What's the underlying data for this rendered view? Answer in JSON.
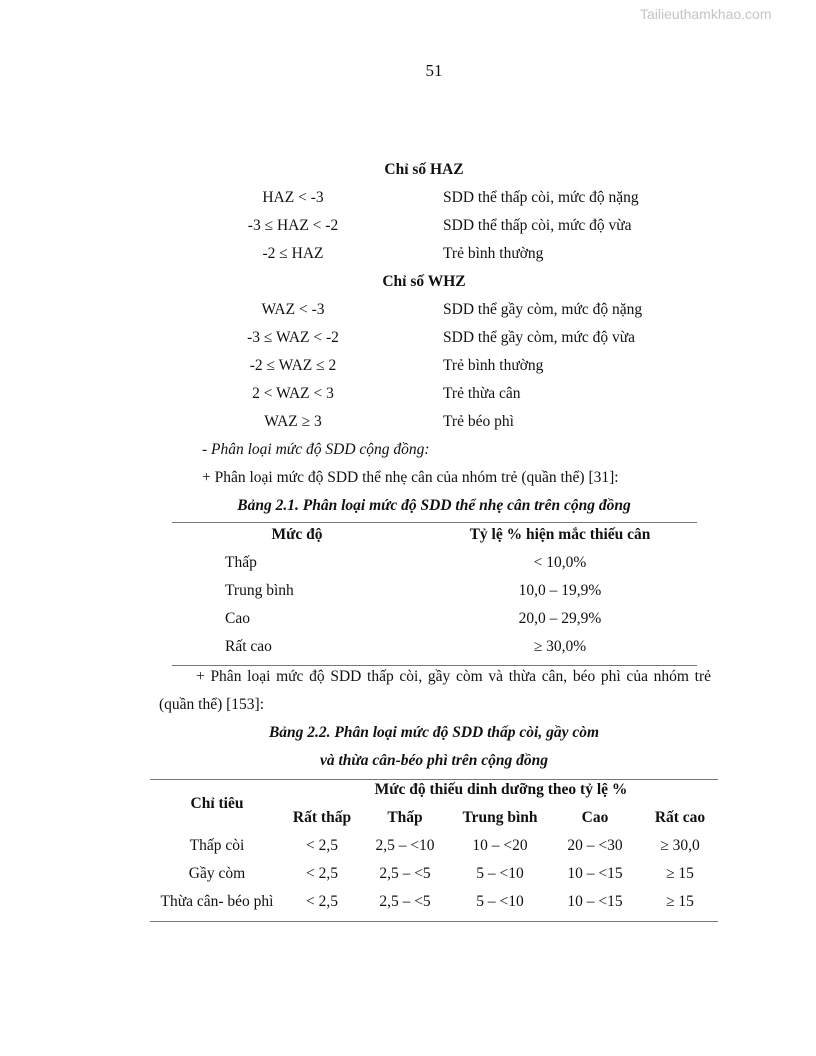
{
  "watermark": "Tailieuthamkhao.com",
  "page_number": "51",
  "haz": {
    "heading": "Chỉ số HAZ",
    "rows": [
      {
        "range": "HAZ < -3",
        "meaning": "SDD thể thấp còi, mức độ nặng"
      },
      {
        "range": "-3 ≤ HAZ < -2",
        "meaning": "SDD thể thấp còi, mức độ vừa"
      },
      {
        "range": "-2 ≤ HAZ",
        "meaning": "Trẻ bình thường"
      }
    ]
  },
  "whz": {
    "heading": "Chỉ số WHZ",
    "rows": [
      {
        "range": "WAZ < -3",
        "meaning": "SDD thể gầy còm, mức độ nặng"
      },
      {
        "range": "-3 ≤ WAZ < -2",
        "meaning": "SDD thể gầy còm, mức độ vừa"
      },
      {
        "range": "-2 ≤ WAZ ≤ 2",
        "meaning": "Trẻ bình thường"
      },
      {
        "range": "2 < WAZ < 3",
        "meaning": "Trẻ thừa cân"
      },
      {
        "range": "WAZ ≥ 3",
        "meaning": "Trẻ béo phì"
      }
    ]
  },
  "section_label": "- Phân loại mức độ SDD cộng đồng:",
  "para1": "+ Phân loại mức độ SDD thể nhẹ cân của nhóm trẻ (quần thể) [31]:",
  "table1": {
    "caption": "Bảng 2.1. Phân loại mức độ SDD thể nhẹ cân trên cộng đồng",
    "headers": [
      "Mức độ",
      "Tỷ lệ % hiện mắc thiếu cân"
    ],
    "rows": [
      [
        "Thấp",
        "< 10,0%"
      ],
      [
        "Trung bình",
        "10,0 – 19,9%"
      ],
      [
        "Cao",
        "20,0 – 29,9%"
      ],
      [
        "Rất cao",
        "≥ 30,0%"
      ]
    ]
  },
  "para2_line1": "+ Phân loại mức độ SDD thấp còi, gầy còm và thừa cân, béo phì của nhóm trẻ",
  "para2_line2": "(quần thể) [153]:",
  "table2": {
    "caption_line1": "Bảng 2.2. Phân loại mức độ SDD thấp còi, gầy còm",
    "caption_line2": "và thừa cân-béo phì trên cộng đồng",
    "row_header": "Chỉ tiêu",
    "group_header": "Mức độ thiếu dinh dưỡng theo tỷ lệ %",
    "headers": [
      "Rất thấp",
      "Thấp",
      "Trung bình",
      "Cao",
      "Rất cao"
    ],
    "rows": [
      [
        "Thấp còi",
        "< 2,5",
        "2,5 – <10",
        "10 – <20",
        "20 – <30",
        "≥ 30,0"
      ],
      [
        "Gầy còm",
        "< 2,5",
        "2,5 – <5",
        "5 – <10",
        "10 – <15",
        "≥ 15"
      ],
      [
        "Thừa cân- béo phì",
        "< 2,5",
        "2,5 – <5",
        "5 – <10",
        "10 – <15",
        "≥ 15"
      ]
    ]
  }
}
